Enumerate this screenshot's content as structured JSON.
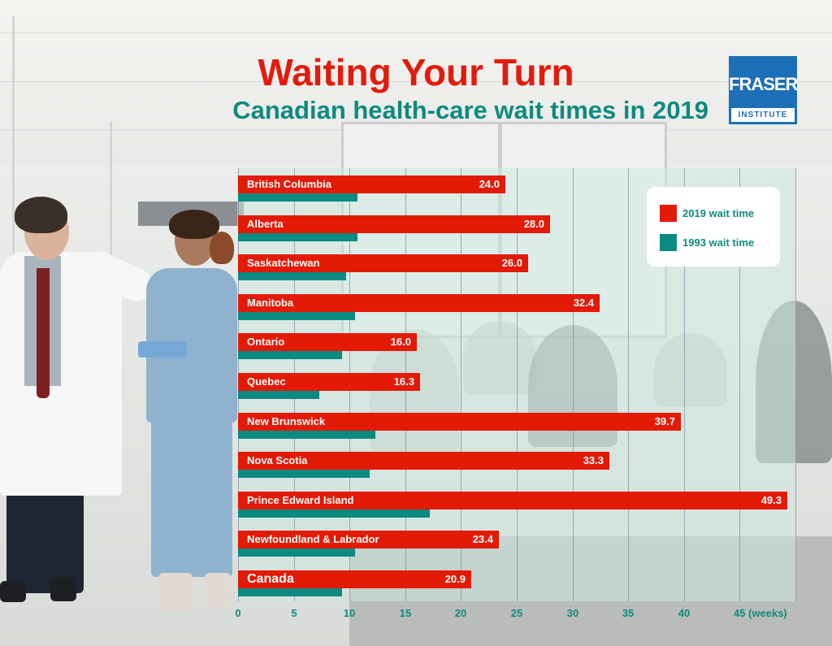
{
  "header": {
    "title": "Waiting Your Turn",
    "subtitle": "Canadian health-care wait times in 2019",
    "logo": {
      "line1": "FRASER",
      "line2": "INSTITUTE",
      "color": "#1c6fb6"
    }
  },
  "colors": {
    "series_2019": "#e31a06",
    "series_1993": "#0b8a82",
    "title": "#e31b0c",
    "subtitle": "#0e8a80"
  },
  "chart_data": {
    "type": "bar",
    "orientation": "horizontal",
    "title": "Waiting Your Turn",
    "subtitle": "Canadian health-care wait times in 2019",
    "xlabel": "(weeks)",
    "ylabel": "",
    "xlim": [
      0,
      50
    ],
    "xticks": [
      "0",
      "5",
      "10",
      "15",
      "20",
      "25",
      "30",
      "35",
      "40",
      "45 (weeks)"
    ],
    "grid": true,
    "legend_position": "top-right",
    "categories": [
      "British Columbia",
      "Alberta",
      "Saskatchewan",
      "Manitoba",
      "Ontario",
      "Quebec",
      "New Brunswick",
      "Nova Scotia",
      "Prince Edward Island",
      "Newfoundland & Labrador",
      "Canada"
    ],
    "series": [
      {
        "name": "2019 wait time",
        "values": [
          24.0,
          28.0,
          26.0,
          32.4,
          16.0,
          16.3,
          39.7,
          33.3,
          49.3,
          23.4,
          20.9
        ],
        "labels": [
          "24.0",
          "28.0",
          "26.0",
          "32.4",
          "16.0",
          "16.3",
          "39.7",
          "33.3",
          "49.3",
          "23.4",
          "20.9"
        ]
      },
      {
        "name": "1993 wait time",
        "values": [
          10.7,
          10.7,
          9.7,
          10.5,
          9.3,
          7.3,
          12.3,
          11.8,
          17.2,
          10.5,
          9.3
        ]
      }
    ]
  }
}
